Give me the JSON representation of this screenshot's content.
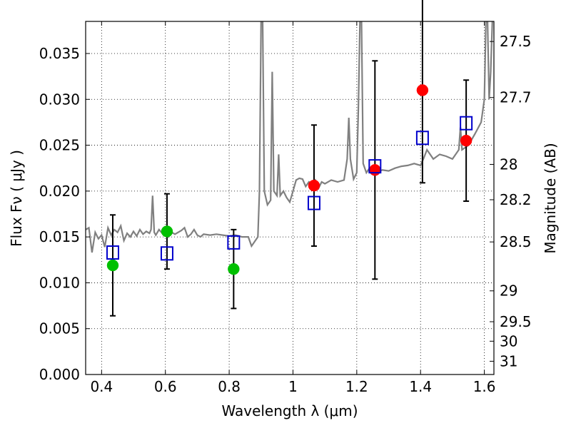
{
  "chart_data": {
    "type": "scatter",
    "xlabel": "Wavelength  λ (μm)",
    "ylabel": "Flux  Fν  ( μJy )",
    "ylabel_right": "Magnitude (AB)",
    "xlim": [
      0.35,
      1.63
    ],
    "ylim": [
      0.0,
      0.0385
    ],
    "grid": true,
    "x_ticks": [
      0.4,
      0.6,
      0.8,
      1.0,
      1.2,
      1.4,
      1.6
    ],
    "x_tick_labels": [
      "0.4",
      "0.6",
      "0.8",
      "1",
      "1.2",
      "1.4",
      "1.6"
    ],
    "y_ticks": [
      0.0,
      0.005,
      0.01,
      0.015,
      0.02,
      0.025,
      0.03,
      0.035
    ],
    "y_tick_labels": [
      "0.000",
      "0.005",
      "0.010",
      "0.015",
      "0.020",
      "0.025",
      "0.030",
      "0.035"
    ],
    "right_ticks": [
      {
        "mag": 27.5,
        "label": "27.5"
      },
      {
        "mag": 27.7,
        "label": "27.7"
      },
      {
        "mag": 28.0,
        "label": "28"
      },
      {
        "mag": 28.2,
        "label": "28.2"
      },
      {
        "mag": 28.5,
        "label": "28.5"
      },
      {
        "mag": 29.0,
        "label": "29"
      },
      {
        "mag": 29.5,
        "label": "29.5"
      },
      {
        "mag": 30.0,
        "label": "30"
      },
      {
        "mag": 31.0,
        "label": "31"
      }
    ],
    "series": [
      {
        "kind": "spectrum",
        "color": "#808080",
        "points": [
          [
            0.35,
            0.0158
          ],
          [
            0.36,
            0.016
          ],
          [
            0.37,
            0.0133
          ],
          [
            0.38,
            0.0155
          ],
          [
            0.39,
            0.0148
          ],
          [
            0.4,
            0.0152
          ],
          [
            0.41,
            0.0139
          ],
          [
            0.42,
            0.016
          ],
          [
            0.43,
            0.0152
          ],
          [
            0.44,
            0.0158
          ],
          [
            0.45,
            0.0155
          ],
          [
            0.46,
            0.0162
          ],
          [
            0.47,
            0.0146
          ],
          [
            0.48,
            0.0154
          ],
          [
            0.49,
            0.015
          ],
          [
            0.5,
            0.0156
          ],
          [
            0.51,
            0.0151
          ],
          [
            0.52,
            0.0158
          ],
          [
            0.53,
            0.0153
          ],
          [
            0.54,
            0.0156
          ],
          [
            0.55,
            0.0154
          ],
          [
            0.555,
            0.0158
          ],
          [
            0.56,
            0.0195
          ],
          [
            0.565,
            0.0155
          ],
          [
            0.57,
            0.0152
          ],
          [
            0.58,
            0.0158
          ],
          [
            0.59,
            0.0154
          ],
          [
            0.6,
            0.0156
          ],
          [
            0.61,
            0.015
          ],
          [
            0.62,
            0.0155
          ],
          [
            0.63,
            0.0153
          ],
          [
            0.65,
            0.0157
          ],
          [
            0.66,
            0.016
          ],
          [
            0.67,
            0.015
          ],
          [
            0.68,
            0.0153
          ],
          [
            0.69,
            0.0158
          ],
          [
            0.7,
            0.0152
          ],
          [
            0.71,
            0.015
          ],
          [
            0.72,
            0.0153
          ],
          [
            0.74,
            0.0152
          ],
          [
            0.76,
            0.0153
          ],
          [
            0.78,
            0.0152
          ],
          [
            0.8,
            0.0151
          ],
          [
            0.82,
            0.0152
          ],
          [
            0.84,
            0.015
          ],
          [
            0.86,
            0.015
          ],
          [
            0.87,
            0.014
          ],
          [
            0.88,
            0.0145
          ],
          [
            0.89,
            0.015
          ],
          [
            0.895,
            0.02
          ],
          [
            0.9,
            0.0385
          ],
          [
            0.905,
            0.0385
          ],
          [
            0.91,
            0.02
          ],
          [
            0.92,
            0.0185
          ],
          [
            0.93,
            0.019
          ],
          [
            0.935,
            0.033
          ],
          [
            0.94,
            0.02
          ],
          [
            0.95,
            0.0195
          ],
          [
            0.955,
            0.024
          ],
          [
            0.96,
            0.0195
          ],
          [
            0.97,
            0.02
          ],
          [
            0.98,
            0.0193
          ],
          [
            0.99,
            0.0188
          ],
          [
            1.0,
            0.02
          ],
          [
            1.01,
            0.0212
          ],
          [
            1.02,
            0.0214
          ],
          [
            1.03,
            0.0213
          ],
          [
            1.04,
            0.0205
          ],
          [
            1.05,
            0.021
          ],
          [
            1.06,
            0.0208
          ],
          [
            1.07,
            0.0212
          ],
          [
            1.08,
            0.0203
          ],
          [
            1.09,
            0.021
          ],
          [
            1.1,
            0.0208
          ],
          [
            1.12,
            0.0212
          ],
          [
            1.14,
            0.021
          ],
          [
            1.16,
            0.0212
          ],
          [
            1.17,
            0.0235
          ],
          [
            1.175,
            0.028
          ],
          [
            1.18,
            0.0235
          ],
          [
            1.19,
            0.0213
          ],
          [
            1.2,
            0.022
          ],
          [
            1.205,
            0.029
          ],
          [
            1.21,
            0.0385
          ],
          [
            1.215,
            0.0385
          ],
          [
            1.22,
            0.023
          ],
          [
            1.23,
            0.022
          ],
          [
            1.24,
            0.0225
          ],
          [
            1.26,
            0.022
          ],
          [
            1.28,
            0.0223
          ],
          [
            1.3,
            0.0222
          ],
          [
            1.32,
            0.0225
          ],
          [
            1.34,
            0.0227
          ],
          [
            1.36,
            0.0228
          ],
          [
            1.38,
            0.023
          ],
          [
            1.4,
            0.0228
          ],
          [
            1.41,
            0.0236
          ],
          [
            1.42,
            0.0245
          ],
          [
            1.44,
            0.0235
          ],
          [
            1.46,
            0.024
          ],
          [
            1.48,
            0.0238
          ],
          [
            1.5,
            0.0235
          ],
          [
            1.51,
            0.024
          ],
          [
            1.52,
            0.0245
          ],
          [
            1.525,
            0.027
          ],
          [
            1.53,
            0.0245
          ],
          [
            1.55,
            0.025
          ],
          [
            1.57,
            0.0262
          ],
          [
            1.59,
            0.0275
          ],
          [
            1.6,
            0.03
          ],
          [
            1.605,
            0.0385
          ],
          [
            1.61,
            0.0385
          ],
          [
            1.615,
            0.03
          ],
          [
            1.62,
            0.033
          ],
          [
            1.625,
            0.0385
          ]
        ]
      },
      {
        "kind": "observed",
        "points": [
          {
            "x": 0.435,
            "y": 0.0119,
            "err": 0.0055,
            "color": "#00c000"
          },
          {
            "x": 0.605,
            "y": 0.0156,
            "err": 0.0041,
            "color": "#00c000"
          },
          {
            "x": 0.814,
            "y": 0.0115,
            "err": 0.0043,
            "color": "#00c000"
          },
          {
            "x": 1.066,
            "y": 0.0206,
            "err": 0.0066,
            "color": "#ff0000"
          },
          {
            "x": 1.257,
            "y": 0.0223,
            "err": 0.0119,
            "color": "#ff0000"
          },
          {
            "x": 1.406,
            "y": 0.031,
            "err": 0.0101,
            "color": "#ff0000"
          },
          {
            "x": 1.543,
            "y": 0.0255,
            "err": 0.0066,
            "color": "#ff0000"
          }
        ]
      },
      {
        "kind": "model",
        "color": "#0000cc",
        "points": [
          {
            "x": 0.435,
            "y": 0.0133
          },
          {
            "x": 0.605,
            "y": 0.0132
          },
          {
            "x": 0.814,
            "y": 0.0144
          },
          {
            "x": 1.066,
            "y": 0.0187
          },
          {
            "x": 1.257,
            "y": 0.0227
          },
          {
            "x": 1.406,
            "y": 0.0258
          },
          {
            "x": 1.543,
            "y": 0.0274
          }
        ]
      }
    ]
  }
}
